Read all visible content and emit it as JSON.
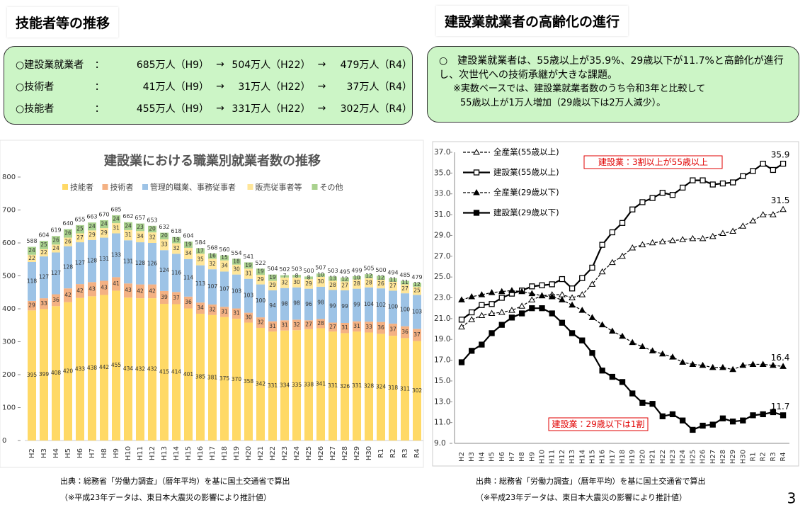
{
  "left_title": "技能者等の推移",
  "right_title": "建設業就業者の高齢化の進行",
  "left_box": {
    "rows": [
      {
        "label": "○建設業就業者",
        "sep": "：",
        "items": [
          "685万人（H9）",
          "→",
          "504万人（H22）",
          "→",
          "479万人（R4）"
        ]
      },
      {
        "label": "○技術者",
        "sep": "：",
        "items": [
          "41万人（H9）",
          "→",
          "31万人（H22）",
          "→",
          "37万人（R4）"
        ]
      },
      {
        "label": "○技能者",
        "sep": "：",
        "items": [
          "455万人（H9）",
          "→",
          "331万人（H22）",
          "→",
          "302万人（R4）"
        ]
      }
    ]
  },
  "right_box": {
    "lines": [
      "○　建設業就業者は、55歳以上が35.9%、29歳以下が11.7%と高齢化が進行し、次世代への技術承継が大きな課題。",
      "※実数ベースでは、建設業就業者数のうち令和3年と比較して",
      "55歳以上が1万人増加（29歳以下は2万人減少）。"
    ]
  },
  "chart_data": [
    {
      "type": "stacked-bar",
      "title": "建設業における職業別就業者数の推移",
      "categories": [
        "H2",
        "H3",
        "H4",
        "H5",
        "H6",
        "H7",
        "H8",
        "H9",
        "H10",
        "H11",
        "H12",
        "H13",
        "H14",
        "H15",
        "H16",
        "H17",
        "H18",
        "H19",
        "H20",
        "H21",
        "H22",
        "H23",
        "H24",
        "H25",
        "H26",
        "H27",
        "H28",
        "H29",
        "H30",
        "R1",
        "R2",
        "R3",
        "R4"
      ],
      "series": [
        {
          "name": "技能者",
          "color": "#ffd966",
          "values": [
            395,
            399,
            408,
            420,
            433,
            438,
            442,
            455,
            434,
            432,
            432,
            415,
            414,
            401,
            385,
            381,
            375,
            370,
            358,
            342,
            331,
            334,
            335,
            338,
            341,
            331,
            326,
            331,
            328,
            324,
            318,
            311,
            302
          ]
        },
        {
          "name": "技術者",
          "color": "#f4b183",
          "values": [
            29,
            33,
            36,
            42,
            42,
            43,
            43,
            41,
            43,
            42,
            42,
            39,
            37,
            36,
            34,
            32,
            31,
            31,
            30,
            32,
            31,
            31,
            32,
            27,
            28,
            27,
            31,
            31,
            33,
            36,
            37,
            36,
            37
          ]
        },
        {
          "name": "管理的職業、事務従事者",
          "color": "#9dc3e6",
          "values": [
            118,
            127,
            127,
            128,
            127,
            128,
            131,
            133,
            131,
            128,
            126,
            124,
            116,
            114,
            113,
            107,
            107,
            103,
            103,
            100,
            94,
            98,
            98,
            96,
            98,
            99,
            99,
            99,
            104,
            102,
            100,
            100,
            103
          ]
        },
        {
          "name": "販売従事者等",
          "color": "#ffe699",
          "values": [
            22,
            22,
            24,
            26,
            27,
            29,
            29,
            31,
            31,
            34,
            32,
            33,
            32,
            34,
            35,
            32,
            34,
            30,
            31,
            29,
            29,
            32,
            30,
            29,
            30,
            28,
            27,
            28,
            28,
            26,
            27,
            27,
            25
          ]
        },
        {
          "name": "その他",
          "color": "#a9d18e",
          "values": [
            24,
            25,
            26,
            26,
            25,
            24,
            24,
            24,
            24,
            23,
            20,
            20,
            19,
            19,
            17,
            16,
            15,
            18,
            19,
            19,
            19,
            7,
            8,
            8,
            10,
            13,
            12,
            10,
            12,
            12,
            11,
            11,
            12
          ]
        }
      ],
      "totals": [
        588,
        604,
        619,
        640,
        655,
        663,
        670,
        685,
        662,
        657,
        653,
        632,
        618,
        604,
        584,
        568,
        560,
        554,
        541,
        522,
        504,
        502,
        503,
        500,
        507,
        503,
        495,
        499,
        505,
        500,
        494,
        485,
        479
      ],
      "ylim": [
        0,
        800
      ],
      "yticks": [
        0,
        100,
        200,
        300,
        400,
        500,
        600,
        700,
        800
      ],
      "source": "出典：総務省「労働力調査」（暦年平均）を基に国土交通省で算出",
      "note": "（※平成23年データは、東日本大震災の影響により推計値）"
    },
    {
      "type": "line",
      "categories": [
        "H2",
        "H3",
        "H4",
        "H5",
        "H6",
        "H7",
        "H8",
        "H9",
        "H10",
        "H11",
        "H12",
        "H13",
        "H14",
        "H15",
        "H16",
        "H17",
        "H18",
        "H19",
        "H20",
        "H21",
        "H22",
        "H23",
        "H24",
        "H25",
        "H26",
        "H27",
        "H28",
        "H29",
        "H30",
        "R1",
        "R2",
        "R3",
        "R4"
      ],
      "series": [
        {
          "name": "全産業(55歳以上)",
          "color": "#000000",
          "dashed": true,
          "marker": "triangle-open",
          "values": [
            20.2,
            20.9,
            21.3,
            21.5,
            21.6,
            21.8,
            22.2,
            22.8,
            23.2,
            23.3,
            23.3,
            23.0,
            23.3,
            24.3,
            25.5,
            26.4,
            27.0,
            27.8,
            28.1,
            28.3,
            28.4,
            28.5,
            28.6,
            28.7,
            28.7,
            28.9,
            29.2,
            29.4,
            29.9,
            30.4,
            31.0,
            31.0,
            31.5
          ]
        },
        {
          "name": "建設業(55歳以上)",
          "color": "#000000",
          "dashed": false,
          "marker": "square-open",
          "values": [
            20.9,
            21.6,
            22.3,
            22.4,
            23.0,
            23.4,
            23.7,
            24.1,
            24.2,
            24.3,
            24.8,
            23.9,
            24.9,
            25.9,
            28.1,
            29.3,
            30.2,
            31.5,
            32.2,
            32.6,
            33.1,
            32.9,
            33.6,
            34.3,
            34.3,
            33.9,
            34.0,
            34.1,
            34.7,
            35.2,
            35.9,
            35.3,
            35.9
          ]
        },
        {
          "name": "全産業(29歳以下)",
          "color": "#000000",
          "dashed": true,
          "marker": "triangle-filled",
          "values": [
            22.8,
            23.1,
            23.3,
            23.5,
            23.6,
            23.7,
            23.6,
            23.4,
            23.2,
            23.1,
            22.8,
            22.3,
            21.8,
            21.1,
            20.4,
            19.8,
            19.3,
            18.7,
            18.3,
            17.9,
            17.6,
            17.3,
            16.8,
            16.6,
            16.5,
            16.3,
            16.3,
            16.1,
            16.5,
            16.6,
            16.6,
            16.5,
            16.4
          ]
        },
        {
          "name": "建設業(29歳以下)",
          "color": "#000000",
          "dashed": false,
          "marker": "square-filled",
          "values": [
            16.8,
            17.9,
            18.5,
            19.6,
            20.4,
            21.1,
            21.5,
            22.0,
            22.0,
            21.5,
            20.6,
            19.6,
            18.9,
            17.7,
            16.0,
            15.4,
            14.9,
            13.8,
            12.9,
            12.8,
            11.6,
            11.8,
            11.2,
            10.3,
            10.7,
            10.8,
            11.4,
            11.1,
            11.2,
            11.7,
            11.8,
            12.0,
            11.7
          ]
        }
      ],
      "annotations": [
        "建設業：3割以上が55歳以上",
        "建設業：29歳以下は1割"
      ],
      "ylim": [
        9,
        37
      ],
      "yticks": [
        {
          "value": 9,
          "label": "9.0"
        },
        {
          "value": 11,
          "label": "11.0"
        },
        {
          "value": 13,
          "label": "13.0"
        },
        {
          "value": 15,
          "label": "15.0"
        },
        {
          "value": 17,
          "label": "17.0"
        },
        {
          "value": 19,
          "label": "19.0"
        },
        {
          "value": 21,
          "label": "21.0"
        },
        {
          "value": 23,
          "label": "23.0"
        },
        {
          "value": 25,
          "label": "25.0"
        },
        {
          "value": 27,
          "label": "27.0"
        },
        {
          "value": 29,
          "label": "29.0"
        },
        {
          "value": 31,
          "label": "31.0"
        },
        {
          "value": 33,
          "label": "33.0"
        },
        {
          "value": 35,
          "label": "35.0"
        },
        {
          "value": 37,
          "label": "37.0"
        }
      ],
      "source": "出典：総務省「労働力調査」（暦年平均）を基に国土交通省で算出",
      "note": "（※平成23年データは、東日本大震災の影響により推計値）"
    }
  ],
  "page_number": "3"
}
